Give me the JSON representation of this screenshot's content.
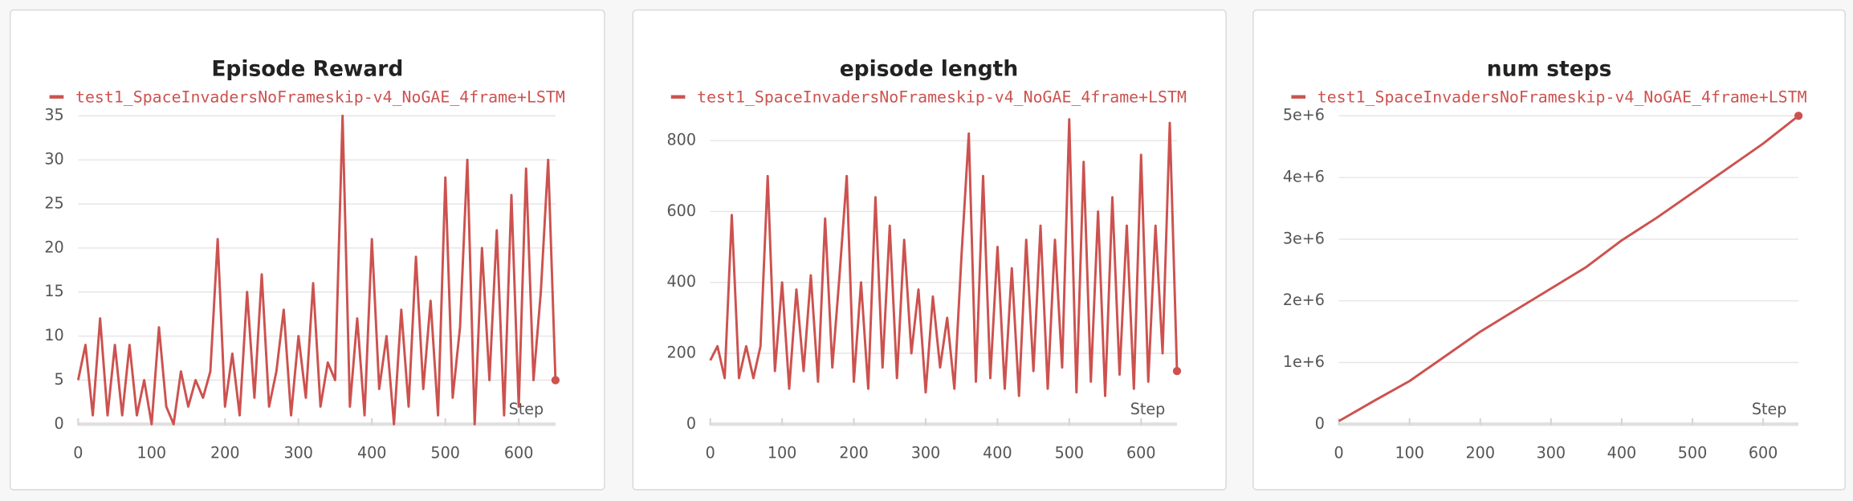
{
  "chart_data": [
    {
      "type": "line",
      "title": "Episode Reward",
      "x_label": "Step",
      "grid": true,
      "x": [
        0,
        10,
        20,
        30,
        40,
        50,
        60,
        70,
        80,
        90,
        100,
        110,
        120,
        130,
        140,
        150,
        160,
        170,
        180,
        190,
        200,
        210,
        220,
        230,
        240,
        250,
        260,
        270,
        280,
        290,
        300,
        310,
        320,
        330,
        340,
        350,
        360,
        370,
        380,
        390,
        400,
        410,
        420,
        430,
        440,
        450,
        460,
        470,
        480,
        490,
        500,
        510,
        520,
        530,
        540,
        550,
        560,
        570,
        580,
        590,
        600,
        610,
        620,
        630,
        640,
        650
      ],
      "series": [
        {
          "name": "test1_SpaceInvadersNoFrameskip-v4_NoGAE_4frame+LSTM",
          "color": "#cc524f",
          "values": [
            5,
            9,
            1,
            12,
            1,
            9,
            1,
            9,
            1,
            5,
            0,
            11,
            2,
            0,
            6,
            2,
            5,
            3,
            6,
            21,
            2,
            8,
            1,
            15,
            3,
            17,
            2,
            6,
            13,
            1,
            10,
            3,
            16,
            2,
            7,
            5,
            35,
            2,
            12,
            1,
            21,
            4,
            10,
            0,
            13,
            2,
            19,
            4,
            14,
            1,
            28,
            3,
            11,
            30,
            0,
            20,
            5,
            22,
            1,
            26,
            2,
            29,
            5,
            15,
            30,
            5
          ]
        }
      ],
      "xlim": [
        0,
        650
      ],
      "xticks": [
        0,
        100,
        200,
        300,
        400,
        500,
        600
      ],
      "ylim": [
        0,
        35
      ],
      "yticks": [
        0,
        5,
        10,
        15,
        20,
        25,
        30,
        35
      ]
    },
    {
      "type": "line",
      "title": "episode length",
      "x_label": "Step",
      "grid": true,
      "x": [
        0,
        10,
        20,
        30,
        40,
        50,
        60,
        70,
        80,
        90,
        100,
        110,
        120,
        130,
        140,
        150,
        160,
        170,
        180,
        190,
        200,
        210,
        220,
        230,
        240,
        250,
        260,
        270,
        280,
        290,
        300,
        310,
        320,
        330,
        340,
        350,
        360,
        370,
        380,
        390,
        400,
        410,
        420,
        430,
        440,
        450,
        460,
        470,
        480,
        490,
        500,
        510,
        520,
        530,
        540,
        550,
        560,
        570,
        580,
        590,
        600,
        610,
        620,
        630,
        640,
        650
      ],
      "series": [
        {
          "name": "test1_SpaceInvadersNoFrameskip-v4_NoGAE_4frame+LSTM",
          "color": "#cc524f",
          "values": [
            180,
            220,
            130,
            590,
            130,
            220,
            130,
            220,
            700,
            150,
            400,
            100,
            380,
            150,
            420,
            120,
            580,
            160,
            420,
            700,
            120,
            400,
            100,
            640,
            160,
            560,
            130,
            520,
            200,
            380,
            90,
            360,
            160,
            300,
            100,
            480,
            820,
            120,
            700,
            130,
            500,
            100,
            440,
            80,
            520,
            150,
            560,
            100,
            520,
            160,
            860,
            90,
            740,
            120,
            600,
            80,
            640,
            140,
            560,
            100,
            760,
            120,
            560,
            200,
            850,
            150
          ]
        }
      ],
      "xlim": [
        0,
        650
      ],
      "xticks": [
        0,
        100,
        200,
        300,
        400,
        500,
        600
      ],
      "ylim": [
        0,
        870
      ],
      "yticks": [
        0,
        200,
        400,
        600,
        800
      ]
    },
    {
      "type": "line",
      "title": "num steps",
      "x_label": "Step",
      "grid": true,
      "x": [
        0,
        50,
        100,
        150,
        200,
        250,
        300,
        350,
        400,
        450,
        500,
        550,
        600,
        650
      ],
      "series": [
        {
          "name": "test1_SpaceInvadersNoFrameskip-v4_NoGAE_4frame+LSTM",
          "color": "#cc524f",
          "values": [
            50000,
            380000,
            700000,
            1100000,
            1500000,
            1850000,
            2200000,
            2550000,
            2980000,
            3350000,
            3750000,
            4150000,
            4550000,
            5000000
          ]
        }
      ],
      "xlim": [
        0,
        650
      ],
      "xticks": [
        0,
        100,
        200,
        300,
        400,
        500,
        600
      ],
      "ylim": [
        0,
        5000000
      ],
      "yticks": [
        0,
        {
          "value": 1000000,
          "label": "1e+6"
        },
        {
          "value": 2000000,
          "label": "2e+6"
        },
        {
          "value": 3000000,
          "label": "3e+6"
        },
        {
          "value": 4000000,
          "label": "4e+6"
        },
        {
          "value": 5000000,
          "label": "5e+6"
        }
      ]
    }
  ]
}
